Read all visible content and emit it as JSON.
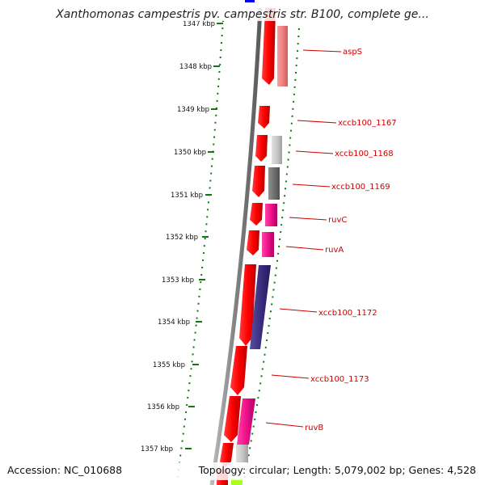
{
  "title": "Xanthomonas campestris pv. campestris str. B100, complete ge...",
  "accession": "Accession: NC_010688",
  "topology": "Topology: circular; Length: 5,079,002 bp; Genes: 4,528",
  "ticks": [
    "1347 kbp",
    "1348 kbp",
    "1349 kbp",
    "1350 kbp",
    "1351 kbp",
    "1352 kbp",
    "1353 kbp",
    "1354 kbp",
    "1355 kbp",
    "1356 kbp",
    "1357 kbp"
  ],
  "genes": [
    "aspS",
    "xccb100_1167",
    "xccb100_1168",
    "xccb100_1169",
    "ruvC",
    "ruvA",
    "xccb100_1172",
    "xccb100_1173",
    "ruvB"
  ],
  "colors": {
    "cds_red": "#ff0000",
    "pink": "#ee1188",
    "light_pink": "#f08080",
    "grey_light": "#c8c8c8",
    "grey_dark": "#707070",
    "purple": "#3a2f80",
    "tick_green": "#117711",
    "label_red": "#cc0000"
  }
}
